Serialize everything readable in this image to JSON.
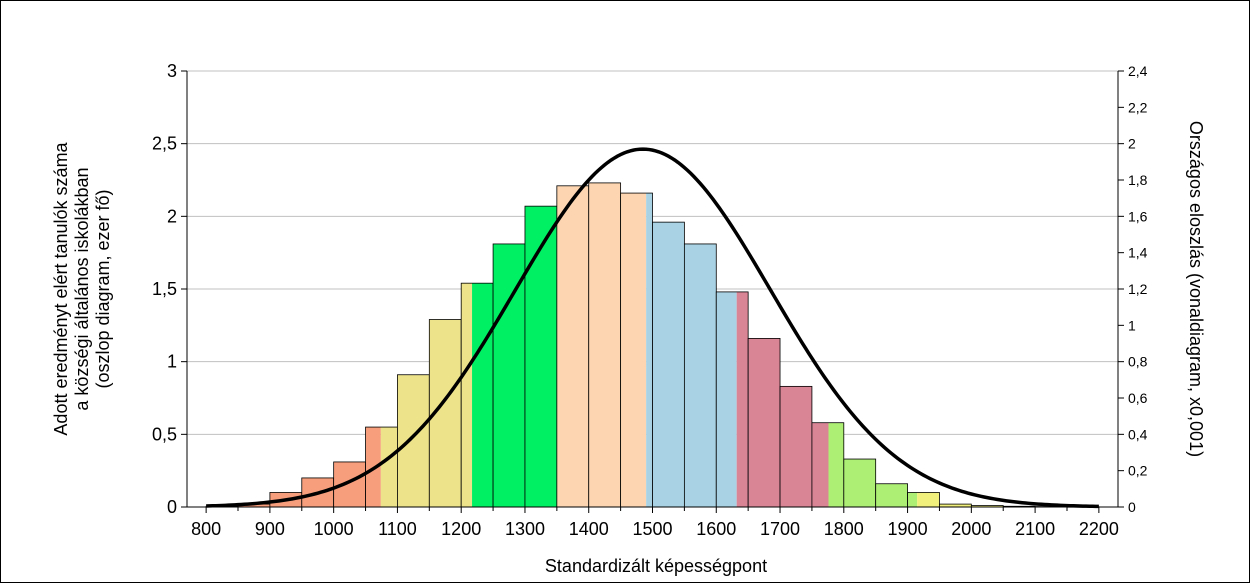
{
  "chart_data": {
    "type": "bar",
    "xlabel": "Standardizált képességpont",
    "ylabel_lines": [
      "Adott eredményt elért tanulók száma",
      "a községi általános iskolákban",
      "(oszlop diagram, ezer fő)"
    ],
    "y2label": "Országos eloszlás (vonaldiagram, x0,001)",
    "xlim": [
      770,
      2230
    ],
    "ylim": [
      0,
      3
    ],
    "y2lim": [
      0,
      2.4
    ],
    "x_ticks": [
      800,
      900,
      1000,
      1100,
      1200,
      1300,
      1400,
      1500,
      1600,
      1700,
      1800,
      1900,
      2000,
      2100,
      2200
    ],
    "y_ticks": [
      0,
      0.5,
      1,
      1.5,
      2,
      2.5,
      3
    ],
    "y_tick_labels": [
      "0",
      "0,5",
      "1",
      "1,5",
      "2",
      "2,5",
      "3"
    ],
    "y2_ticks": [
      0,
      0.2,
      0.4,
      0.6,
      0.8,
      1,
      1.2,
      1.4,
      1.6,
      1.8,
      2,
      2.2,
      2.4
    ],
    "y2_tick_labels": [
      "0",
      "0,2",
      "0,4",
      "0,6",
      "0,8",
      "1",
      "1,2",
      "1,4",
      "1,6",
      "1,8",
      "2",
      "2,2",
      "2,4"
    ],
    "grid": true,
    "bins": [
      {
        "x0": 800,
        "x1": 850,
        "value": 0.005
      },
      {
        "x0": 850,
        "x1": 900,
        "value": 0.02
      },
      {
        "x0": 900,
        "x1": 950,
        "value": 0.1
      },
      {
        "x0": 950,
        "x1": 1000,
        "value": 0.2
      },
      {
        "x0": 1000,
        "x1": 1050,
        "value": 0.31
      },
      {
        "x0": 1050,
        "x1": 1100,
        "value": 0.55
      },
      {
        "x0": 1100,
        "x1": 1150,
        "value": 0.91
      },
      {
        "x0": 1150,
        "x1": 1200,
        "value": 1.29
      },
      {
        "x0": 1200,
        "x1": 1250,
        "value": 1.54
      },
      {
        "x0": 1250,
        "x1": 1300,
        "value": 1.81
      },
      {
        "x0": 1300,
        "x1": 1350,
        "value": 2.07
      },
      {
        "x0": 1350,
        "x1": 1400,
        "value": 2.21
      },
      {
        "x0": 1400,
        "x1": 1450,
        "value": 2.23
      },
      {
        "x0": 1450,
        "x1": 1500,
        "value": 2.16
      },
      {
        "x0": 1500,
        "x1": 1550,
        "value": 1.96
      },
      {
        "x0": 1550,
        "x1": 1600,
        "value": 1.81
      },
      {
        "x0": 1600,
        "x1": 1650,
        "value": 1.48
      },
      {
        "x0": 1650,
        "x1": 1700,
        "value": 1.16
      },
      {
        "x0": 1700,
        "x1": 1750,
        "value": 0.83
      },
      {
        "x0": 1750,
        "x1": 1800,
        "value": 0.58
      },
      {
        "x0": 1800,
        "x1": 1850,
        "value": 0.33
      },
      {
        "x0": 1850,
        "x1": 1900,
        "value": 0.16
      },
      {
        "x0": 1900,
        "x1": 1950,
        "value": 0.1
      },
      {
        "x0": 1950,
        "x1": 2000,
        "value": 0.02
      },
      {
        "x0": 2000,
        "x1": 2050,
        "value": 0.01
      },
      {
        "x0": 2050,
        "x1": 2100,
        "value": 0.005
      },
      {
        "x0": 2100,
        "x1": 2150,
        "value": 0.003
      },
      {
        "x0": 2150,
        "x1": 2200,
        "value": 0.002
      }
    ],
    "bands": [
      {
        "x0": 800,
        "x1": 1074,
        "color": "#f79e7c"
      },
      {
        "x0": 1074,
        "x1": 1217,
        "color": "#ede38a"
      },
      {
        "x0": 1217,
        "x1": 1350,
        "color": "#00f064"
      },
      {
        "x0": 1350,
        "x1": 1490,
        "color": "#fdd5b1"
      },
      {
        "x0": 1490,
        "x1": 1632,
        "color": "#a9d3e4"
      },
      {
        "x0": 1632,
        "x1": 1776,
        "color": "#d98596"
      },
      {
        "x0": 1776,
        "x1": 1915,
        "color": "#adee74"
      },
      {
        "x0": 1915,
        "x1": 2200,
        "color": "#f2f07c"
      }
    ],
    "national_distribution": {
      "mean": 1485,
      "sd": 200,
      "peak": 1.97,
      "x_range": [
        800,
        2200
      ],
      "color": "#000000"
    }
  }
}
